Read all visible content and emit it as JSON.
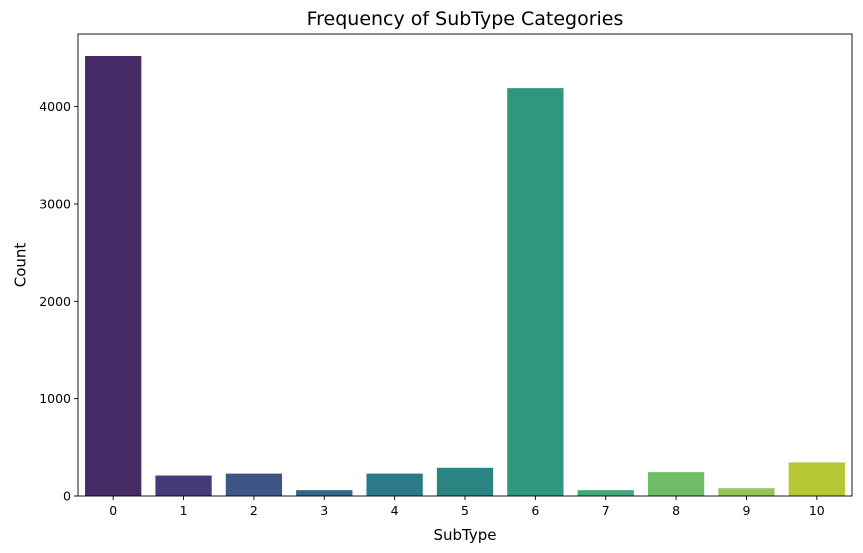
{
  "chart_data": {
    "type": "bar",
    "title": "Frequency of SubType Categories",
    "xlabel": "SubType",
    "ylabel": "Count",
    "categories": [
      "0",
      "1",
      "2",
      "3",
      "4",
      "5",
      "6",
      "7",
      "8",
      "9",
      "10"
    ],
    "values": [
      4520,
      210,
      230,
      60,
      230,
      290,
      4190,
      60,
      245,
      80,
      345
    ],
    "ylim": [
      0,
      4746
    ],
    "yticks": [
      0,
      1000,
      2000,
      3000,
      4000
    ],
    "ytick_labels": [
      "0",
      "1000",
      "2000",
      "3000",
      "4000"
    ],
    "colors": [
      "#472b67",
      "#453b7b",
      "#3e5586",
      "#33658a",
      "#2b7a89",
      "#2a8481",
      "#30977c",
      "#43a77a",
      "#6dbd66",
      "#93c55a",
      "#b5c733"
    ],
    "grid": false,
    "legend": "none"
  }
}
